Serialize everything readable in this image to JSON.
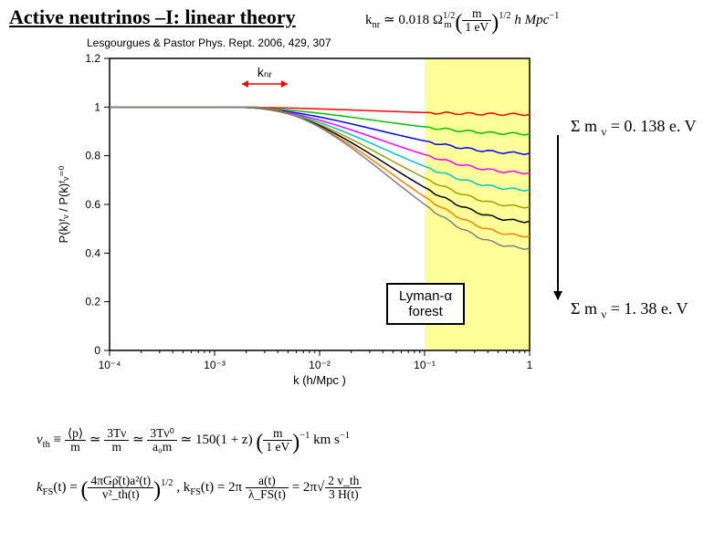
{
  "title": "Active neutrinos –I: linear theory",
  "formula_top_prefix": "k",
  "formula_top_sub": "nr",
  "formula_top_approx": " ≃ 0.018 Ω",
  "formula_top_omega_sup": "1/2",
  "formula_top_omega_sub": "m",
  "formula_top_frac_num": "m",
  "formula_top_frac_den": "1 eV",
  "formula_top_half": "1/2",
  "formula_top_unit": " h Mpc",
  "formula_top_unit_sup": "−1",
  "citation": "Lesgourgues & Pastor Phys. Rept. 2006, 429, 307",
  "label_m1_prefix": "Σ m ",
  "label_m1_sub": "ν",
  "label_m1_value": " = 0. 138 e. V",
  "label_m2_prefix": "Σ m ",
  "label_m2_sub": "ν",
  "label_m2_value": " = 1. 38 e. V",
  "lyman_line1": "Lyman-α",
  "lyman_line2": "forest",
  "chart": {
    "type": "line",
    "background_color": "#ffffff",
    "shade_color": "#ffff99",
    "xlabel": "k   (h/Mpc )",
    "ylabel": "P(k)ᶠᵥ / P(k)ᶠᵥ⁼⁰",
    "knr_label": "kₙᵣ",
    "x_log": true,
    "xlim": [
      0.0001,
      1
    ],
    "ylim": [
      0,
      1.2
    ],
    "xticks": [
      0.0001,
      0.001,
      0.01,
      0.1,
      1
    ],
    "xtick_labels": [
      "10⁻⁴",
      "10⁻³",
      "10⁻²",
      "10⁻¹",
      "1"
    ],
    "yticks": [
      0,
      0.2,
      0.4,
      0.6,
      0.8,
      1,
      1.2
    ],
    "axis_fontsize": 13,
    "tick_fontsize": 12,
    "line_width": 1.5,
    "shade_xmin": 0.1,
    "shade_xmax": 1,
    "knr_marker_x": 0.003,
    "series": [
      {
        "color": "#ff0000",
        "end_y": 0.97
      },
      {
        "color": "#00c000",
        "end_y": 0.89
      },
      {
        "color": "#0000ff",
        "end_y": 0.81
      },
      {
        "color": "#ff00ff",
        "end_y": 0.73
      },
      {
        "color": "#00c8c8",
        "end_y": 0.66
      },
      {
        "color": "#a0a000",
        "end_y": 0.59
      },
      {
        "color": "#000000",
        "end_y": 0.53
      },
      {
        "color": "#ff8000",
        "end_y": 0.47
      },
      {
        "color": "#808080",
        "end_y": 0.42
      }
    ]
  },
  "formula_b1_lhs_num": "⟨p⟩",
  "formula_b1_lhs_den": "m",
  "formula_b1_mid1_num": "3Tν",
  "formula_b1_mid1_den": "m",
  "formula_b1_mid2_num": "3Tν⁰",
  "formula_b1_mid2_den": "a₀m",
  "formula_b1_rhs_text": " ≃ 150(1 + z)",
  "formula_b1_frac_num": "m",
  "formula_b1_frac_den": "1 eV",
  "formula_b1_exp": "−1",
  "formula_b1_unit": " km s",
  "formula_b1_unit_sup": "−1",
  "formula_b2_lhs": "k",
  "formula_b2_lhs_sub": "FS",
  "formula_b2_lhs_arg": "(t) = ",
  "formula_b2_frac1_num": "4πGρ̄(t)a²(t)",
  "formula_b2_frac1_den": "v²_th(t)",
  "formula_b2_exp1": "1/2",
  "formula_b2_mid": " ,     k",
  "formula_b2_mid_sub": "FS",
  "formula_b2_mid_arg": "(t) = 2π ",
  "formula_b2_frac2_num": "a(t)",
  "formula_b2_frac2_den": "λ_FS(t)",
  "formula_b2_eq": " = 2π",
  "formula_b2_sqrt_num": "2 v_th",
  "formula_b2_sqrt_den": "3 H(t)",
  "vth_label": "v",
  "vth_sub": "th",
  "vth_eq": " ≡ "
}
